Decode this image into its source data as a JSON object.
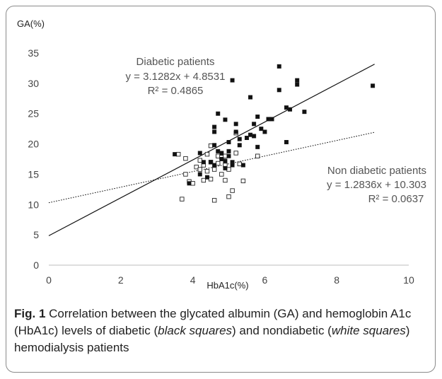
{
  "chart_data": {
    "type": "scatter",
    "ylabel": "GA(%)",
    "xlabel": "HbA1c(%)",
    "xlim": [
      0,
      10
    ],
    "ylim": [
      0,
      35
    ],
    "xticks": [
      "0",
      "2",
      "4",
      "6",
      "8",
      "10"
    ],
    "yticks": [
      "0",
      "5",
      "10",
      "15",
      "20",
      "25",
      "30",
      "35"
    ],
    "grid": false,
    "series": [
      {
        "name": "Diabetic patients",
        "marker": "filled-square",
        "color": "#111111",
        "points": [
          [
            3.5,
            18.3
          ],
          [
            3.9,
            13.5
          ],
          [
            4.2,
            18.5
          ],
          [
            4.2,
            15.0
          ],
          [
            4.3,
            17.0
          ],
          [
            4.4,
            14.5
          ],
          [
            4.5,
            17.0
          ],
          [
            4.6,
            22.8
          ],
          [
            4.6,
            22.0
          ],
          [
            4.6,
            19.8
          ],
          [
            4.6,
            16.5
          ],
          [
            4.7,
            25.0
          ],
          [
            4.7,
            18.8
          ],
          [
            4.8,
            18.5
          ],
          [
            4.8,
            17.5
          ],
          [
            4.9,
            16.0
          ],
          [
            4.9,
            24.0
          ],
          [
            4.9,
            17.2
          ],
          [
            5.0,
            20.3
          ],
          [
            5.0,
            18.0
          ],
          [
            5.0,
            18.8
          ],
          [
            5.1,
            17.0
          ],
          [
            5.1,
            16.5
          ],
          [
            5.1,
            30.5
          ],
          [
            5.2,
            23.3
          ],
          [
            5.2,
            22.0
          ],
          [
            5.3,
            20.8
          ],
          [
            5.3,
            19.8
          ],
          [
            5.4,
            16.5
          ],
          [
            5.5,
            21.0
          ],
          [
            5.6,
            21.5
          ],
          [
            5.6,
            27.7
          ],
          [
            5.7,
            21.3
          ],
          [
            5.7,
            23.3
          ],
          [
            5.8,
            24.5
          ],
          [
            5.8,
            19.5
          ],
          [
            5.9,
            22.5
          ],
          [
            6.0,
            22.0
          ],
          [
            6.1,
            24.1
          ],
          [
            6.2,
            24.1
          ],
          [
            6.4,
            32.8
          ],
          [
            6.4,
            28.9
          ],
          [
            6.6,
            26.0
          ],
          [
            6.6,
            20.3
          ],
          [
            6.7,
            25.7
          ],
          [
            6.9,
            30.5
          ],
          [
            6.9,
            29.8
          ],
          [
            7.1,
            25.3
          ],
          [
            9.0,
            29.6
          ]
        ]
      },
      {
        "name": "Non diabetic patients",
        "marker": "open-square",
        "color": "#ffffff",
        "points": [
          [
            3.6,
            18.3
          ],
          [
            3.7,
            10.9
          ],
          [
            3.8,
            17.6
          ],
          [
            3.8,
            15.0
          ],
          [
            3.9,
            13.8
          ],
          [
            4.0,
            13.5
          ],
          [
            4.1,
            16.2
          ],
          [
            4.2,
            15.8
          ],
          [
            4.2,
            17.3
          ],
          [
            4.3,
            16.5
          ],
          [
            4.3,
            14.0
          ],
          [
            4.4,
            18.3
          ],
          [
            4.4,
            15.5
          ],
          [
            4.5,
            14.2
          ],
          [
            4.5,
            19.7
          ],
          [
            4.5,
            17.0
          ],
          [
            4.6,
            10.7
          ],
          [
            4.6,
            15.8
          ],
          [
            4.7,
            18.0
          ],
          [
            4.7,
            16.8
          ],
          [
            4.8,
            15.0
          ],
          [
            4.8,
            17.8
          ],
          [
            4.9,
            16.5
          ],
          [
            4.9,
            18.0
          ],
          [
            4.9,
            14.0
          ],
          [
            5.0,
            15.8
          ],
          [
            5.0,
            11.3
          ],
          [
            5.1,
            12.3
          ],
          [
            5.2,
            21.8
          ],
          [
            5.2,
            18.5
          ],
          [
            5.3,
            16.7
          ],
          [
            5.4,
            13.9
          ],
          [
            5.8,
            18.0
          ]
        ]
      }
    ],
    "trendlines": [
      {
        "series": "Diabetic patients",
        "slope": 3.1282,
        "intercept": 4.8531,
        "style": "solid",
        "equation": "y = 3.1282x + 4.8531",
        "r2": "R² = 0.4865"
      },
      {
        "series": "Non diabetic patients",
        "slope": 1.2836,
        "intercept": 10.303,
        "style": "dotted",
        "equation": "y = 1.2836x + 10.303",
        "r2": "R² = 0.0637"
      }
    ]
  },
  "caption": {
    "label": "Fig. 1",
    "text_1": " Correlation between the glycated albumin (GA) and hemoglobin A1c (HbA1c) levels of diabetic (",
    "italic_1": "black squares",
    "text_2": ") and nondiabetic (",
    "italic_2": "white squares",
    "text_3": ") hemodialysis patients"
  }
}
